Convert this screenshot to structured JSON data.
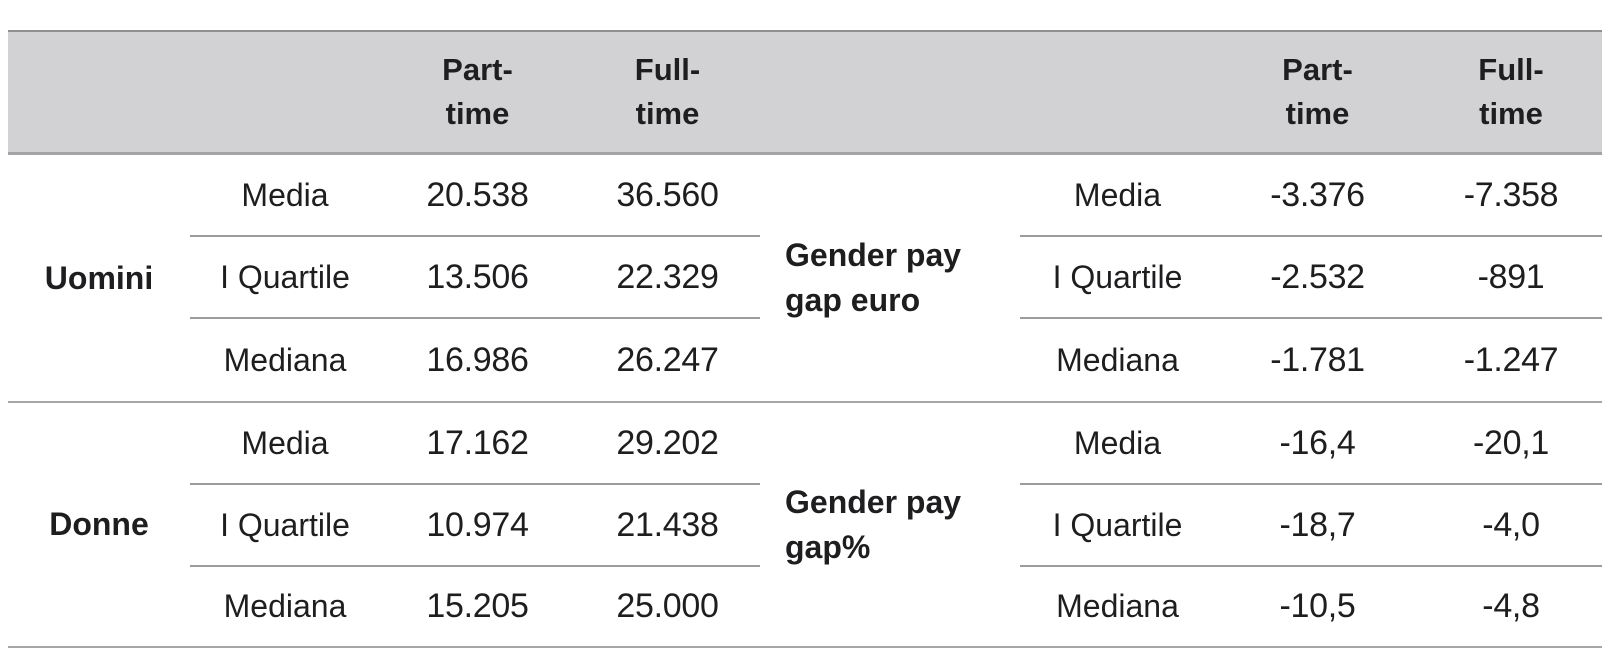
{
  "table": {
    "column_headers": [
      {
        "label": "Part-time"
      },
      {
        "label": "Full-time"
      },
      {
        "label": "Part-time"
      },
      {
        "label": "Full-time"
      }
    ],
    "sections": [
      {
        "group_label": "Uomini",
        "gap_label": "Gender pay gap euro",
        "rows": [
          {
            "stat": "Media",
            "part_time": "20.538",
            "full_time": "36.560",
            "gap_stat": "Media",
            "gap_part_time": "-3.376",
            "gap_full_time": "-7.358"
          },
          {
            "stat": "I Quartile",
            "part_time": "13.506",
            "full_time": "22.329",
            "gap_stat": "I Quartile",
            "gap_part_time": "-2.532",
            "gap_full_time": "-891"
          },
          {
            "stat": "Mediana",
            "part_time": "16.986",
            "full_time": "26.247",
            "gap_stat": "Mediana",
            "gap_part_time": "-1.781",
            "gap_full_time": "-1.247"
          }
        ]
      },
      {
        "group_label": "Donne",
        "gap_label": "Gender pay gap%",
        "rows": [
          {
            "stat": "Media",
            "part_time": "17.162",
            "full_time": "29.202",
            "gap_stat": "Media",
            "gap_part_time": "-16,4",
            "gap_full_time": "-20,1"
          },
          {
            "stat": "I Quartile",
            "part_time": "10.974",
            "full_time": "21.438",
            "gap_stat": "I Quartile",
            "gap_part_time": "-18,7",
            "gap_full_time": "-4,0"
          },
          {
            "stat": "Mediana",
            "part_time": "15.205",
            "full_time": "25.000",
            "gap_stat": "Mediana",
            "gap_part_time": "-10,5",
            "gap_full_time": "-4,8"
          }
        ]
      }
    ],
    "colors": {
      "header_bg": "#d2d2d4",
      "border_dark": "#8f8f93",
      "border_light": "#9c9c9c",
      "text": "#1e1e20"
    }
  }
}
